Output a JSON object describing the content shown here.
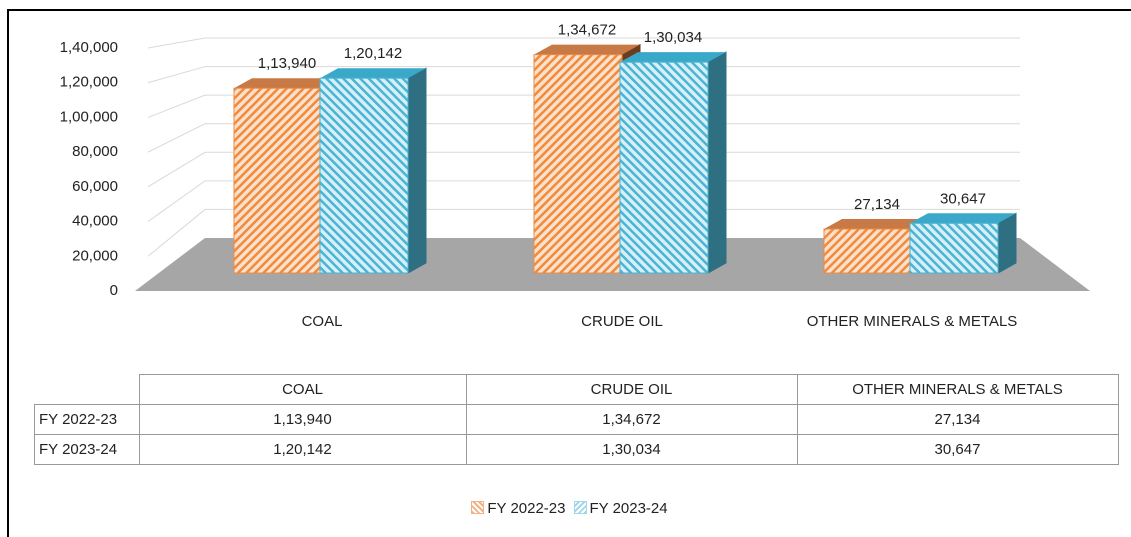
{
  "chart_data": {
    "type": "bar3d",
    "categories": [
      "COAL",
      "CRUDE OIL",
      "OTHER MINERALS & METALS"
    ],
    "series": [
      {
        "name": "FY 2022-23",
        "color": "#f4b183",
        "values": [
          113940,
          134672,
          27134
        ],
        "value_labels": [
          "1,13,940",
          "1,34,672",
          "27,134"
        ]
      },
      {
        "name": "FY 2023-24",
        "color": "#9fd8ea",
        "values": [
          120142,
          130034,
          30647
        ],
        "value_labels": [
          "1,20,142",
          "1,30,034",
          "30,647"
        ]
      }
    ],
    "ylim": [
      0,
      140000
    ],
    "yticks": [
      0,
      {
        "value": 20000,
        "label": "20,000"
      },
      {
        "value": 40000,
        "label": "40,000"
      },
      {
        "value": 60000,
        "label": "60,000"
      },
      {
        "value": 80000,
        "label": "80,000"
      },
      {
        "value": 100000,
        "label": "1,00,000"
      },
      {
        "value": 120000,
        "label": "1,20,000"
      },
      {
        "value": 140000,
        "label": "1,40,000"
      }
    ],
    "grid": true,
    "legend": "bottom"
  }
}
